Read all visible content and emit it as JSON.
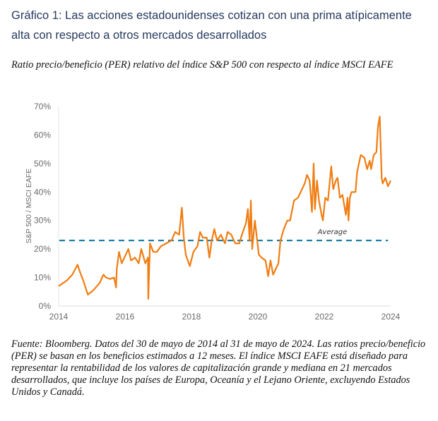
{
  "title": "Gráfico 1: Las acciones estadounidenses cotizan con una prima atípicamente alta con respecto a otros mercados desarrollados",
  "subtitle": "Ratio precio/beneficio (PER) relativo del índice S&P 500 con respecto al índice MSCI EAFE",
  "note": "Fuente: Bloomberg. Datos del 30 de mayo de 2014 al 31 de mayo de 2024. Las ratios precio/beneficio (PER) se basan en los beneficios estimados a 12 meses. El índice MSCI EAFE está diseñado para representar la rentabilidad de los valores de capitalización grande y mediana en 21 mercados desarrollados, que incluye los países de Europa, Oceanía y el Lejano Oriente, excluyendo Estados Unidos y Canadá.",
  "chart_data": {
    "type": "line",
    "title": "",
    "xlabel": "",
    "ylabel": "S&P 500 / MSCI EAFE",
    "xlim": [
      2014,
      2024
    ],
    "ylim": [
      0,
      70
    ],
    "x_ticks": [
      "2014",
      "2016",
      "2018",
      "2020",
      "2022",
      "2024"
    ],
    "x_tick_values": [
      2014,
      2016,
      2018,
      2020,
      2022,
      2024
    ],
    "y_ticks": [
      "0%",
      "10%",
      "20%",
      "30%",
      "40%",
      "50%",
      "60%",
      "70%"
    ],
    "y_tick_values": [
      0,
      10,
      20,
      30,
      40,
      50,
      60,
      70
    ],
    "grid": false,
    "colors": {
      "series": "#f07d12",
      "average": "#1f7fa6",
      "axis": "#d9d9d9"
    },
    "average": {
      "label": "Average",
      "value": 23
    },
    "series": [
      {
        "name": "S&P 500 / MSCI EAFE",
        "x": [
          2014.0,
          2014.25,
          2014.41,
          2014.57,
          2014.64,
          2014.74,
          2014.88,
          2015.04,
          2015.23,
          2015.35,
          2015.43,
          2015.55,
          2015.67,
          2015.73,
          2015.75,
          2015.82,
          2015.9,
          2015.98,
          2016.1,
          2016.18,
          2016.3,
          2016.41,
          2016.49,
          2016.61,
          2016.69,
          2016.7,
          2016.75,
          2016.85,
          2016.96,
          2017.08,
          2017.24,
          2017.4,
          2017.51,
          2017.63,
          2017.71,
          2017.77,
          2017.83,
          2017.95,
          2018.06,
          2018.18,
          2018.26,
          2018.34,
          2018.46,
          2018.54,
          2018.61,
          2018.69,
          2018.77,
          2018.89,
          2019.01,
          2019.09,
          2019.2,
          2019.32,
          2019.44,
          2019.52,
          2019.64,
          2019.7,
          2019.75,
          2019.79,
          2019.83,
          2019.91,
          2020.03,
          2020.11,
          2020.23,
          2020.31,
          2020.38,
          2020.46,
          2020.54,
          2020.62,
          2020.68,
          2020.78,
          2020.89,
          2020.97,
          2021.09,
          2021.21,
          2021.29,
          2021.41,
          2021.48,
          2021.56,
          2021.63,
          2021.68,
          2021.72,
          2021.78,
          2021.84,
          2021.92,
          2021.96,
          2022.03,
          2022.11,
          2022.21,
          2022.27,
          2022.35,
          2022.4,
          2022.47,
          2022.55,
          2022.65,
          2022.7,
          2022.73,
          2022.77,
          2022.82,
          2022.94,
          2022.99,
          2023.1,
          2023.21,
          2023.29,
          2023.37,
          2023.41,
          2023.49,
          2023.57,
          2023.62,
          2023.67,
          2023.73,
          2023.76,
          2023.84,
          2023.92,
          2024.0
        ],
        "values": [
          7,
          9,
          11,
          14.5,
          12,
          9,
          4,
          5.5,
          8,
          11,
          10,
          9.5,
          10,
          6.5,
          13,
          19,
          15,
          17,
          20,
          16,
          17,
          15,
          20,
          15,
          17,
          2.5,
          22,
          19,
          19,
          21,
          22,
          23,
          26,
          25,
          34.5,
          24,
          18,
          14,
          19,
          21,
          26,
          24,
          24,
          17,
          23,
          27,
          23,
          25,
          22,
          26,
          25,
          22,
          22,
          25,
          29,
          34,
          23,
          37,
          20,
          30,
          18,
          17,
          16,
          10.5,
          16,
          11,
          13,
          15,
          23,
          27,
          30,
          30,
          37,
          38,
          40,
          43,
          46,
          44,
          33,
          50,
          34,
          44,
          37,
          32,
          30,
          38,
          37,
          49,
          41,
          44,
          45,
          38,
          39,
          32,
          38,
          30,
          38,
          40,
          40,
          47,
          53,
          52,
          48,
          51,
          48,
          53,
          54,
          63,
          66.5,
          45,
          43,
          45,
          42,
          44
        ]
      }
    ]
  }
}
